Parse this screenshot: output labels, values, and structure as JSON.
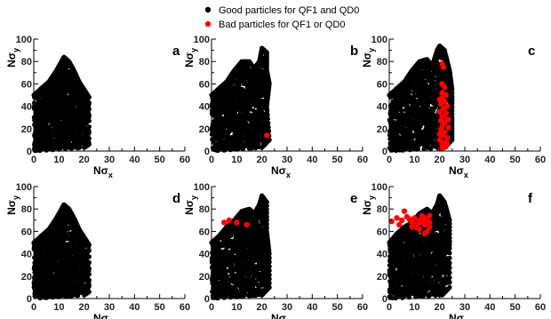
{
  "legend": {
    "placement": "top-center",
    "entries": [
      {
        "label": "Good particles for QF1 and QD0",
        "color": "#000000"
      },
      {
        "label": "Bad particles for QF1 or QD0",
        "color": "#ff0000"
      }
    ]
  },
  "chart_data": [
    {
      "type": "scatter",
      "panel_label": "a",
      "xlabel": "Nσx",
      "ylabel": "Nσy",
      "xlim": [
        0,
        60
      ],
      "ylim": [
        0,
        100
      ],
      "xticks": [
        "0",
        "10",
        "20",
        "30",
        "40",
        "50",
        "60"
      ],
      "yticks": [
        "0",
        "20",
        "40",
        "60",
        "80",
        "100"
      ],
      "good_envelope": [
        [
          0,
          50
        ],
        [
          3,
          56
        ],
        [
          6,
          62
        ],
        [
          9,
          72
        ],
        [
          11,
          80
        ],
        [
          12,
          84
        ],
        [
          14,
          80
        ],
        [
          16,
          72
        ],
        [
          18,
          62
        ],
        [
          20,
          55
        ],
        [
          22,
          48
        ],
        [
          22,
          6
        ],
        [
          20,
          3
        ],
        [
          0,
          0
        ]
      ],
      "bad_points": []
    },
    {
      "type": "scatter",
      "panel_label": "b",
      "xlabel": "Nσx",
      "ylabel": "Nσy",
      "xlim": [
        0,
        60
      ],
      "ylim": [
        0,
        100
      ],
      "xticks": [
        "0",
        "10",
        "20",
        "30",
        "40",
        "50",
        "60"
      ],
      "yticks": [
        "0",
        "20",
        "40",
        "60",
        "80",
        "100"
      ],
      "good_envelope": [
        [
          0,
          50
        ],
        [
          3,
          56
        ],
        [
          6,
          62
        ],
        [
          9,
          72
        ],
        [
          12,
          80
        ],
        [
          15,
          80
        ],
        [
          17,
          74
        ],
        [
          19,
          80
        ],
        [
          20,
          92
        ],
        [
          22,
          88
        ],
        [
          22,
          72
        ],
        [
          23,
          60
        ],
        [
          22,
          40
        ],
        [
          23,
          10
        ],
        [
          20,
          3
        ],
        [
          0,
          0
        ]
      ],
      "bad_points": [
        [
          22,
          14
        ]
      ]
    },
    {
      "type": "scatter",
      "panel_label": "c",
      "xlabel": "Nσx",
      "ylabel": "Nσy",
      "xlim": [
        0,
        60
      ],
      "ylim": [
        0,
        100
      ],
      "xticks": [
        "0",
        "10",
        "20",
        "30",
        "40",
        "50",
        "60"
      ],
      "yticks": [
        "0",
        "20",
        "40",
        "60",
        "80",
        "100"
      ],
      "good_envelope": [
        [
          0,
          50
        ],
        [
          3,
          56
        ],
        [
          6,
          62
        ],
        [
          9,
          72
        ],
        [
          12,
          80
        ],
        [
          15,
          82
        ],
        [
          17,
          76
        ],
        [
          19,
          90
        ],
        [
          20,
          94
        ],
        [
          22,
          90
        ],
        [
          24,
          72
        ],
        [
          25,
          55
        ],
        [
          25,
          30
        ],
        [
          25,
          10
        ],
        [
          22,
          3
        ],
        [
          0,
          0
        ]
      ],
      "bad_points": [
        [
          21,
          78
        ],
        [
          21.5,
          75
        ],
        [
          21,
          60
        ],
        [
          22,
          57
        ],
        [
          21,
          52
        ],
        [
          22.5,
          50
        ],
        [
          21,
          47
        ],
        [
          22,
          44
        ],
        [
          20.5,
          42
        ],
        [
          23,
          40
        ],
        [
          21.5,
          38
        ],
        [
          20,
          35
        ],
        [
          22.5,
          34
        ],
        [
          21,
          31
        ],
        [
          23,
          29
        ],
        [
          20.5,
          27
        ],
        [
          22,
          25
        ],
        [
          21,
          22
        ],
        [
          23.5,
          21
        ],
        [
          20.5,
          19
        ],
        [
          22,
          17
        ],
        [
          21,
          14
        ],
        [
          23,
          12
        ],
        [
          20,
          10
        ],
        [
          22,
          8
        ],
        [
          21,
          6
        ],
        [
          22.5,
          4
        ],
        [
          20.5,
          2
        ],
        [
          21.5,
          3
        ],
        [
          23,
          7
        ],
        [
          20,
          15
        ],
        [
          23.5,
          28
        ],
        [
          20,
          46
        ]
      ]
    },
    {
      "type": "scatter",
      "panel_label": "d",
      "xlabel": "Nσx",
      "ylabel": "Nσy",
      "xlim": [
        0,
        60
      ],
      "ylim": [
        0,
        100
      ],
      "xticks": [
        "0",
        "10",
        "20",
        "30",
        "40",
        "50",
        "60"
      ],
      "yticks": [
        "0",
        "20",
        "40",
        "60",
        "80",
        "100"
      ],
      "good_envelope": [
        [
          0,
          50
        ],
        [
          3,
          56
        ],
        [
          6,
          62
        ],
        [
          9,
          72
        ],
        [
          11,
          80
        ],
        [
          12,
          84
        ],
        [
          14,
          80
        ],
        [
          16,
          72
        ],
        [
          18,
          62
        ],
        [
          20,
          55
        ],
        [
          22,
          48
        ],
        [
          22,
          6
        ],
        [
          20,
          3
        ],
        [
          0,
          0
        ]
      ],
      "bad_points": []
    },
    {
      "type": "scatter",
      "panel_label": "e",
      "xlabel": "Nσx",
      "ylabel": "Nσy",
      "xlim": [
        0,
        60
      ],
      "ylim": [
        0,
        100
      ],
      "xticks": [
        "0",
        "10",
        "20",
        "30",
        "40",
        "50",
        "60"
      ],
      "yticks": [
        "0",
        "20",
        "40",
        "60",
        "80",
        "100"
      ],
      "good_envelope": [
        [
          0,
          50
        ],
        [
          3,
          56
        ],
        [
          6,
          64
        ],
        [
          9,
          70
        ],
        [
          12,
          78
        ],
        [
          15,
          80
        ],
        [
          17,
          76
        ],
        [
          19,
          84
        ],
        [
          20,
          92
        ],
        [
          22,
          86
        ],
        [
          22,
          60
        ],
        [
          23,
          40
        ],
        [
          23,
          10
        ],
        [
          20,
          3
        ],
        [
          0,
          0
        ]
      ],
      "bad_points": [
        [
          5,
          68
        ],
        [
          7,
          70
        ],
        [
          10,
          68
        ],
        [
          14,
          66
        ]
      ]
    },
    {
      "type": "scatter",
      "panel_label": "f",
      "xlabel": "Nσx",
      "ylabel": "Nσy",
      "xlim": [
        0,
        60
      ],
      "ylim": [
        0,
        100
      ],
      "xticks": [
        "0",
        "10",
        "20",
        "30",
        "40",
        "50",
        "60"
      ],
      "yticks": [
        "0",
        "20",
        "40",
        "60",
        "80",
        "100"
      ],
      "good_envelope": [
        [
          0,
          50
        ],
        [
          3,
          58
        ],
        [
          6,
          64
        ],
        [
          9,
          68
        ],
        [
          12,
          76
        ],
        [
          15,
          80
        ],
        [
          17,
          76
        ],
        [
          19,
          84
        ],
        [
          20,
          92
        ],
        [
          22,
          86
        ],
        [
          24,
          70
        ],
        [
          24,
          45
        ],
        [
          24,
          10
        ],
        [
          21,
          3
        ],
        [
          0,
          0
        ]
      ],
      "bad_points": [
        [
          1,
          69
        ],
        [
          3,
          72
        ],
        [
          5,
          70
        ],
        [
          6,
          78
        ],
        [
          7,
          73
        ],
        [
          8,
          71
        ],
        [
          9,
          68
        ],
        [
          10,
          72
        ],
        [
          11,
          67
        ],
        [
          12,
          70
        ],
        [
          12,
          62
        ],
        [
          13,
          74
        ],
        [
          13,
          68
        ],
        [
          14,
          72
        ],
        [
          14,
          66
        ],
        [
          15,
          70
        ],
        [
          15,
          60
        ],
        [
          16,
          64
        ],
        [
          16,
          74
        ],
        [
          4,
          66
        ],
        [
          9,
          64
        ],
        [
          11,
          63
        ],
        [
          14,
          58
        ],
        [
          16,
          68
        ]
      ]
    }
  ]
}
